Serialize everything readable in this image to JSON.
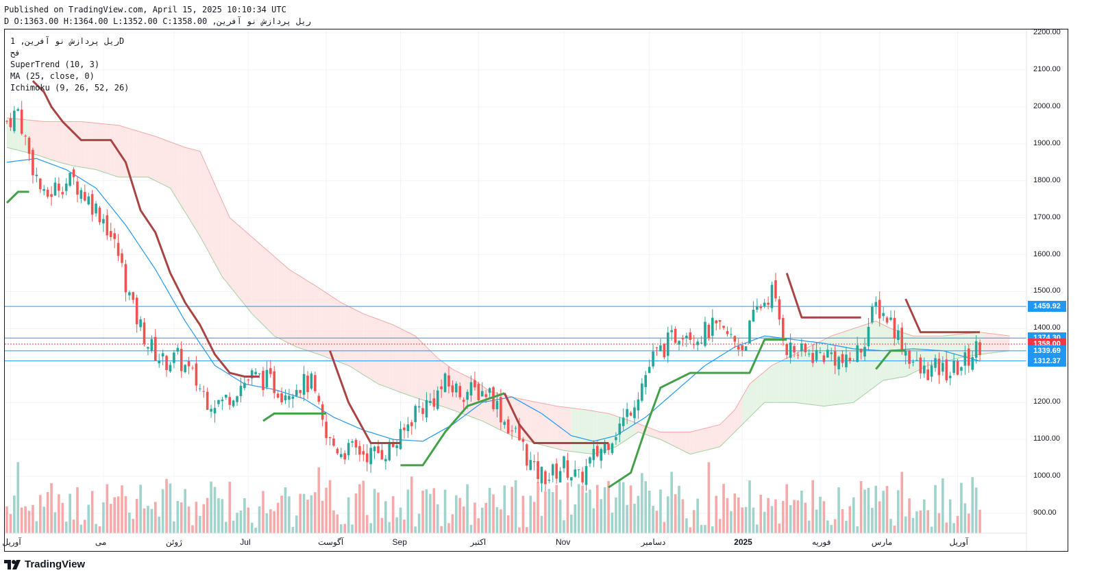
{
  "header": {
    "published": "Published on TradingView.com, April 15, 2025 10:10:34 UTC",
    "ohlc": "ریل پردازش نو آفرین, D O:1363.00 H:1364.00 L:1352.00 C:1358.00"
  },
  "legend": {
    "symbol": "ریل پردازش نو آفرین, 1D",
    "exchange": "فح",
    "supertrend": "SuperTrend (10, 3)",
    "ma": "MA (25, close, 0)",
    "ichimoku": "Ichimoku (9, 26, 52, 26)"
  },
  "price_tags": [
    {
      "label": "1459.92",
      "value": 1459.92,
      "color": "#2196f3"
    },
    {
      "label": "1374.30",
      "value": 1374.3,
      "color": "#2196f3"
    },
    {
      "label": "1358.00",
      "value": 1358.0,
      "color": "#f23645"
    },
    {
      "label": "1339.69",
      "value": 1339.69,
      "color": "#2196f3"
    },
    {
      "label": "1312.37",
      "value": 1312.37,
      "color": "#2196f3"
    }
  ],
  "logo": {
    "text": "TradingView",
    "icon": "tradingview-logo-icon"
  },
  "colors": {
    "up": "#26a69a",
    "down": "#ef5350",
    "supertrend_up": "#43a047",
    "supertrend_down": "#a94442",
    "ma": "#2196f3",
    "cloud_bear": "#fde7e7",
    "cloud_bull": "#e6f4e6",
    "hline": "#2196f3"
  },
  "chart_data": {
    "type": "candlestick",
    "ylim": [
      830,
      2230
    ],
    "y_ticks": [
      "2200.00",
      "2100.00",
      "2000.00",
      "1900.00",
      "1800.00",
      "1700.00",
      "1600.00",
      "1500.00",
      "1400.00",
      "1300.00",
      "1200.00",
      "1100.00",
      "1000.00",
      "900.00"
    ],
    "y_tick_values": [
      2200,
      2100,
      2000,
      1900,
      1800,
      1700,
      1600,
      1500,
      1400,
      1300,
      1200,
      1100,
      1000,
      900
    ],
    "x_ticks": [
      {
        "label": "آوریل",
        "idx": 1
      },
      {
        "label": "می",
        "idx": 26
      },
      {
        "label": "ژوئن",
        "idx": 45
      },
      {
        "label": "Jul",
        "idx": 65
      },
      {
        "label": "آگوست",
        "idx": 86
      },
      {
        "label": "Sep",
        "idx": 106
      },
      {
        "label": "اکتبر",
        "idx": 127
      },
      {
        "label": "Nov",
        "idx": 150
      },
      {
        "label": "دسامبر",
        "idx": 173
      },
      {
        "label": "2025",
        "idx": 198
      },
      {
        "label": "فوریه",
        "idx": 219
      },
      {
        "label": "مارس",
        "idx": 235
      },
      {
        "label": "آوریل",
        "idx": 256
      }
    ],
    "n_bars": 263,
    "horizontal_lines": [
      1459.92,
      1374.3,
      1339.69,
      1312.37
    ],
    "last_price": 1358.0,
    "close_anchors": [
      [
        0,
        1960
      ],
      [
        3,
        1990
      ],
      [
        6,
        1870
      ],
      [
        10,
        1750
      ],
      [
        14,
        1790
      ],
      [
        18,
        1800
      ],
      [
        22,
        1750
      ],
      [
        26,
        1700
      ],
      [
        30,
        1600
      ],
      [
        34,
        1450
      ],
      [
        38,
        1360
      ],
      [
        42,
        1310
      ],
      [
        46,
        1320
      ],
      [
        50,
        1270
      ],
      [
        54,
        1210
      ],
      [
        58,
        1200
      ],
      [
        62,
        1240
      ],
      [
        66,
        1270
      ],
      [
        70,
        1260
      ],
      [
        74,
        1230
      ],
      [
        78,
        1250
      ],
      [
        82,
        1250
      ],
      [
        86,
        1100
      ],
      [
        90,
        1070
      ],
      [
        94,
        1070
      ],
      [
        98,
        1060
      ],
      [
        102,
        1070
      ],
      [
        106,
        1100
      ],
      [
        110,
        1180
      ],
      [
        114,
        1200
      ],
      [
        118,
        1250
      ],
      [
        122,
        1230
      ],
      [
        126,
        1230
      ],
      [
        130,
        1230
      ],
      [
        134,
        1150
      ],
      [
        138,
        1100
      ],
      [
        142,
        1010
      ],
      [
        146,
        1000
      ],
      [
        150,
        1030
      ],
      [
        154,
        990
      ],
      [
        158,
        1050
      ],
      [
        162,
        1100
      ],
      [
        166,
        1150
      ],
      [
        170,
        1230
      ],
      [
        174,
        1320
      ],
      [
        178,
        1360
      ],
      [
        182,
        1400
      ],
      [
        186,
        1380
      ],
      [
        190,
        1400
      ],
      [
        194,
        1380
      ],
      [
        198,
        1350
      ],
      [
        202,
        1450
      ],
      [
        206,
        1500
      ],
      [
        210,
        1350
      ],
      [
        214,
        1330
      ],
      [
        218,
        1330
      ],
      [
        222,
        1330
      ],
      [
        226,
        1300
      ],
      [
        230,
        1350
      ],
      [
        234,
        1460
      ],
      [
        238,
        1420
      ],
      [
        242,
        1340
      ],
      [
        246,
        1280
      ],
      [
        250,
        1290
      ],
      [
        254,
        1280
      ],
      [
        258,
        1310
      ],
      [
        262,
        1358
      ]
    ],
    "ma_anchors": [
      [
        0,
        1850
      ],
      [
        8,
        1860
      ],
      [
        16,
        1830
      ],
      [
        24,
        1780
      ],
      [
        32,
        1680
      ],
      [
        40,
        1560
      ],
      [
        48,
        1420
      ],
      [
        56,
        1300
      ],
      [
        64,
        1250
      ],
      [
        72,
        1235
      ],
      [
        80,
        1210
      ],
      [
        88,
        1160
      ],
      [
        96,
        1125
      ],
      [
        104,
        1100
      ],
      [
        112,
        1095
      ],
      [
        120,
        1140
      ],
      [
        128,
        1200
      ],
      [
        136,
        1215
      ],
      [
        144,
        1170
      ],
      [
        152,
        1110
      ],
      [
        158,
        1095
      ],
      [
        164,
        1110
      ],
      [
        172,
        1160
      ],
      [
        180,
        1230
      ],
      [
        188,
        1300
      ],
      [
        196,
        1350
      ],
      [
        204,
        1380
      ],
      [
        212,
        1370
      ],
      [
        220,
        1360
      ],
      [
        228,
        1345
      ],
      [
        236,
        1340
      ],
      [
        244,
        1345
      ],
      [
        252,
        1340
      ],
      [
        262,
        1312
      ]
    ],
    "supertrend": [
      {
        "trend": "up",
        "points": [
          [
            0,
            1740
          ],
          [
            3,
            1770
          ],
          [
            6,
            1770
          ]
        ]
      },
      {
        "trend": "down",
        "points": [
          [
            7,
            2070
          ],
          [
            10,
            2040
          ],
          [
            12,
            2000
          ],
          [
            15,
            1960
          ],
          [
            20,
            1910
          ],
          [
            28,
            1910
          ],
          [
            32,
            1850
          ],
          [
            36,
            1720
          ],
          [
            40,
            1660
          ],
          [
            44,
            1550
          ],
          [
            48,
            1470
          ],
          [
            52,
            1410
          ],
          [
            56,
            1330
          ],
          [
            60,
            1280
          ],
          [
            64,
            1270
          ],
          [
            68,
            1270
          ]
        ]
      },
      {
        "trend": "up",
        "points": [
          [
            69,
            1150
          ],
          [
            72,
            1170
          ],
          [
            86,
            1170
          ]
        ]
      },
      {
        "trend": "down",
        "points": [
          [
            87,
            1340
          ],
          [
            92,
            1200
          ],
          [
            98,
            1090
          ],
          [
            106,
            1090
          ]
        ]
      },
      {
        "trend": "up",
        "points": [
          [
            106,
            1030
          ],
          [
            112,
            1030
          ],
          [
            118,
            1120
          ],
          [
            124,
            1190
          ],
          [
            134,
            1225
          ]
        ]
      },
      {
        "trend": "down",
        "points": [
          [
            134,
            1225
          ],
          [
            138,
            1140
          ],
          [
            142,
            1090
          ],
          [
            162,
            1090
          ]
        ]
      },
      {
        "trend": "up",
        "points": [
          [
            162,
            970
          ],
          [
            168,
            1010
          ],
          [
            172,
            1130
          ],
          [
            176,
            1240
          ],
          [
            184,
            1280
          ],
          [
            200,
            1280
          ],
          [
            204,
            1370
          ],
          [
            210,
            1370
          ]
        ]
      },
      {
        "trend": "down",
        "points": [
          [
            210,
            1550
          ],
          [
            214,
            1430
          ],
          [
            230,
            1430
          ]
        ]
      },
      {
        "trend": "up",
        "points": [
          [
            234,
            1290
          ],
          [
            238,
            1340
          ],
          [
            242,
            1340
          ]
        ]
      },
      {
        "trend": "down",
        "points": [
          [
            242,
            1480
          ],
          [
            246,
            1390
          ],
          [
            262,
            1390
          ]
        ]
      }
    ],
    "cloud_top": [
      [
        0,
        1970
      ],
      [
        10,
        1960
      ],
      [
        20,
        1960
      ],
      [
        30,
        1950
      ],
      [
        40,
        1920
      ],
      [
        48,
        1890
      ],
      [
        52,
        1880
      ],
      [
        60,
        1700
      ],
      [
        68,
        1630
      ],
      [
        76,
        1560
      ],
      [
        84,
        1510
      ],
      [
        90,
        1470
      ],
      [
        96,
        1440
      ],
      [
        104,
        1410
      ],
      [
        110,
        1380
      ],
      [
        116,
        1320
      ],
      [
        120,
        1290
      ],
      [
        126,
        1260
      ],
      [
        130,
        1230
      ],
      [
        138,
        1210
      ],
      [
        148,
        1190
      ],
      [
        156,
        1180
      ],
      [
        162,
        1170
      ],
      [
        168,
        1150
      ],
      [
        176,
        1120
      ],
      [
        184,
        1120
      ],
      [
        192,
        1140
      ],
      [
        196,
        1180
      ],
      [
        200,
        1250
      ],
      [
        206,
        1300
      ],
      [
        214,
        1340
      ],
      [
        222,
        1380
      ],
      [
        228,
        1400
      ],
      [
        234,
        1420
      ],
      [
        238,
        1400
      ],
      [
        244,
        1380
      ],
      [
        252,
        1380
      ],
      [
        262,
        1390
      ],
      [
        270,
        1380
      ]
    ],
    "cloud_bottom": [
      [
        0,
        1890
      ],
      [
        8,
        1870
      ],
      [
        14,
        1850
      ],
      [
        18,
        1840
      ],
      [
        24,
        1830
      ],
      [
        30,
        1810
      ],
      [
        38,
        1810
      ],
      [
        44,
        1780
      ],
      [
        52,
        1650
      ],
      [
        58,
        1540
      ],
      [
        66,
        1440
      ],
      [
        72,
        1380
      ],
      [
        78,
        1350
      ],
      [
        84,
        1330
      ],
      [
        92,
        1300
      ],
      [
        100,
        1250
      ],
      [
        108,
        1220
      ],
      [
        114,
        1200
      ],
      [
        120,
        1180
      ],
      [
        128,
        1150
      ],
      [
        136,
        1110
      ],
      [
        142,
        1090
      ],
      [
        150,
        1070
      ],
      [
        158,
        1060
      ],
      [
        164,
        1080
      ],
      [
        170,
        1120
      ],
      [
        176,
        1100
      ],
      [
        184,
        1060
      ],
      [
        192,
        1080
      ],
      [
        198,
        1140
      ],
      [
        204,
        1200
      ],
      [
        212,
        1200
      ],
      [
        220,
        1190
      ],
      [
        228,
        1200
      ],
      [
        236,
        1260
      ],
      [
        242,
        1270
      ],
      [
        248,
        1300
      ],
      [
        256,
        1320
      ],
      [
        262,
        1330
      ],
      [
        270,
        1340
      ]
    ],
    "cloud_bull_ranges": [
      [
        0,
        5
      ],
      [
        152,
        168
      ],
      [
        198,
        262
      ]
    ]
  }
}
